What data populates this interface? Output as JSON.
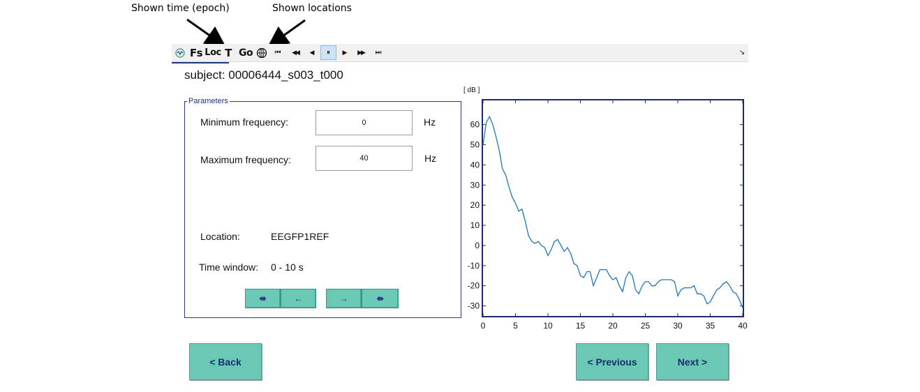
{
  "annotations": {
    "time_label": "Shown time (epoch)",
    "locations_label": "Shown locations"
  },
  "toolbar": {
    "logo_icon": "eeg-logo-icon",
    "fs": "Fs",
    "loc": "Loc",
    "t": "T",
    "go": "Go",
    "locations_icon": "head-globe-icon",
    "first": "⏮",
    "fast_back": "◀◀",
    "back": "◀",
    "pause": "⏸",
    "play": "▶",
    "fast_forward": "▶▶",
    "last": "⏭",
    "corner": "↘"
  },
  "subject": "subject: 00006444_s003_t000",
  "params": {
    "legend": "Parameters",
    "min_freq_label": "Minimum frequency:",
    "min_freq_value": "0",
    "min_freq_unit": "Hz",
    "max_freq_label": "Maximum frequency:",
    "max_freq_value": "40",
    "max_freq_unit": "Hz",
    "location_label": "Location:",
    "location_value": "EEGFP1REF",
    "time_window_label": "Time window:",
    "time_window_value": "0 - 10 s",
    "nav": {
      "first": "⇺",
      "prev": "←",
      "next": "→",
      "last": "⇻"
    }
  },
  "buttons": {
    "back": "<  Back",
    "previous": "< Previous",
    "next": "Next  >"
  },
  "chart_data": {
    "type": "line",
    "ylabel": "[ dB ]",
    "xlabel": "",
    "xlim": [
      0,
      40
    ],
    "ylim": [
      -35,
      72
    ],
    "xticks": [
      0,
      5,
      10,
      15,
      20,
      25,
      30,
      35,
      40
    ],
    "yticks": [
      -30,
      -20,
      -10,
      0,
      10,
      20,
      30,
      40,
      50,
      60
    ],
    "color": "#1f77b4",
    "x": [
      0,
      0.5,
      1,
      1.5,
      2,
      2.5,
      3,
      3.5,
      4,
      4.5,
      5,
      5.5,
      6,
      6.5,
      7,
      7.5,
      8,
      8.5,
      9,
      9.5,
      10,
      10.5,
      11,
      11.5,
      12,
      12.5,
      13,
      13.5,
      14,
      14.5,
      15,
      15.5,
      16,
      16.5,
      17,
      17.5,
      18,
      18.5,
      19,
      19.5,
      20,
      20.5,
      21,
      21.5,
      22,
      22.5,
      23,
      23.5,
      24,
      24.5,
      25,
      25.5,
      26,
      26.5,
      27,
      27.5,
      28,
      28.5,
      29,
      29.5,
      30,
      30.5,
      31,
      31.5,
      32,
      32.5,
      33,
      33.5,
      34,
      34.5,
      35,
      35.5,
      36,
      36.5,
      37,
      37.5,
      38,
      38.5,
      39,
      39.5,
      40
    ],
    "y": [
      50,
      61,
      64,
      60,
      54,
      47,
      38,
      35,
      29,
      24,
      21,
      17,
      18,
      12,
      5,
      2,
      1,
      2,
      0,
      -1,
      -5,
      -2,
      2,
      3,
      0,
      -3,
      -1,
      -4,
      -9,
      -10,
      -15,
      -16,
      -13,
      -13,
      -20,
      -16,
      -12,
      -12,
      -12,
      -15,
      -17,
      -16,
      -20,
      -23,
      -16,
      -13,
      -15,
      -22,
      -24,
      -20,
      -18,
      -18,
      -20,
      -20,
      -18,
      -17,
      -17,
      -17,
      -17,
      -18,
      -25,
      -22,
      -21,
      -21,
      -21,
      -20,
      -24,
      -24,
      -25,
      -29,
      -28,
      -25,
      -22,
      -21,
      -19,
      -18,
      -20,
      -23,
      -24,
      -27,
      -31
    ]
  }
}
